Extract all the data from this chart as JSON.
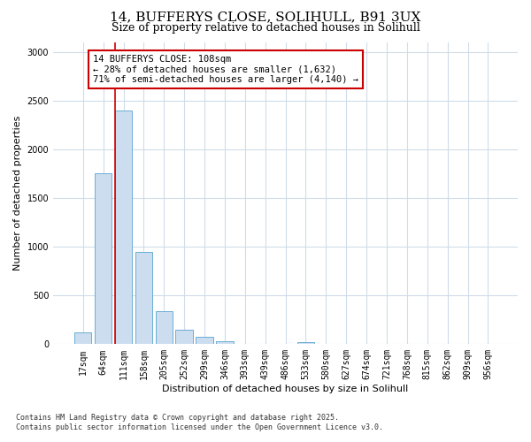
{
  "title_line1": "14, BUFFERYS CLOSE, SOLIHULL, B91 3UX",
  "title_line2": "Size of property relative to detached houses in Solihull",
  "xlabel": "Distribution of detached houses by size in Solihull",
  "ylabel": "Number of detached properties",
  "categories": [
    "17sqm",
    "64sqm",
    "111sqm",
    "158sqm",
    "205sqm",
    "252sqm",
    "299sqm",
    "346sqm",
    "393sqm",
    "439sqm",
    "486sqm",
    "533sqm",
    "580sqm",
    "627sqm",
    "674sqm",
    "721sqm",
    "768sqm",
    "815sqm",
    "862sqm",
    "909sqm",
    "956sqm"
  ],
  "values": [
    120,
    1750,
    2400,
    950,
    340,
    150,
    75,
    30,
    5,
    2,
    1,
    20,
    0,
    0,
    0,
    0,
    0,
    0,
    0,
    0,
    0
  ],
  "bar_color": "#ccddef",
  "bar_edge_color": "#6baed6",
  "red_line_index": 2,
  "annotation_text": "14 BUFFERYS CLOSE: 108sqm\n← 28% of detached houses are smaller (1,632)\n71% of semi-detached houses are larger (4,140) →",
  "annotation_box_facecolor": "#ffffff",
  "annotation_box_edgecolor": "#cc0000",
  "red_line_color": "#cc0000",
  "grid_color": "#d0dce8",
  "bg_color": "#ffffff",
  "ylim": [
    0,
    3100
  ],
  "yticks": [
    0,
    500,
    1000,
    1500,
    2000,
    2500,
    3000
  ],
  "footnote_line1": "Contains HM Land Registry data © Crown copyright and database right 2025.",
  "footnote_line2": "Contains public sector information licensed under the Open Government Licence v3.0.",
  "title_fontsize": 11,
  "subtitle_fontsize": 9,
  "axis_label_fontsize": 8,
  "tick_fontsize": 7,
  "annotation_fontsize": 7.5,
  "footnote_fontsize": 6
}
